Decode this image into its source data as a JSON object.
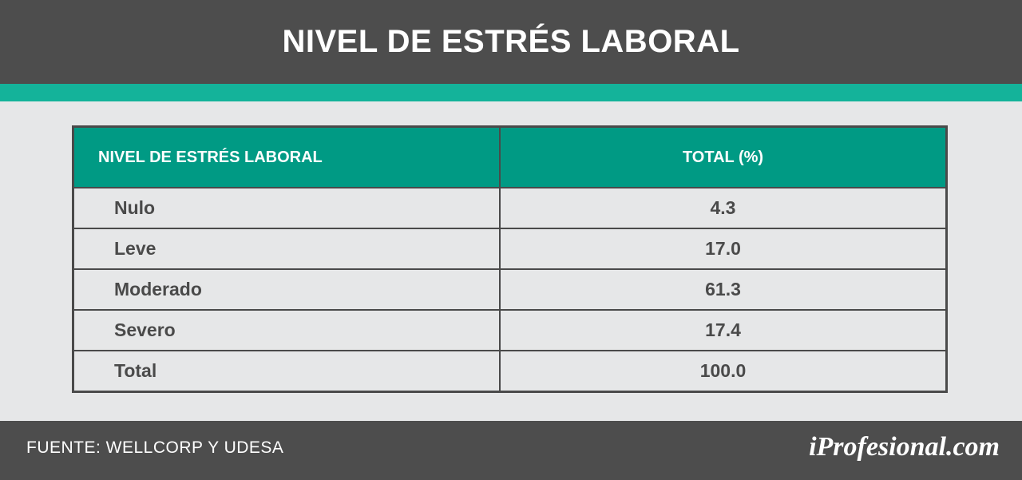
{
  "header": {
    "title": "NIVEL DE ESTRÉS LABORAL"
  },
  "colors": {
    "header_bg": "#4d4d4d",
    "accent": "#14b39a",
    "table_header": "#009a84",
    "background": "#e6e7e8"
  },
  "chart_data": {
    "type": "table",
    "columns": [
      "NIVEL DE ESTRÉS LABORAL",
      "TOTAL (%)"
    ],
    "rows": [
      [
        "Nulo",
        "4.3"
      ],
      [
        "Leve",
        "17.0"
      ],
      [
        "Moderado",
        "61.3"
      ],
      [
        "Severo",
        "17.4"
      ],
      [
        "Total",
        "100.0"
      ]
    ]
  },
  "footer": {
    "source": "FUENTE: WELLCORP Y UDESA",
    "brand": "iProfesional.com"
  }
}
